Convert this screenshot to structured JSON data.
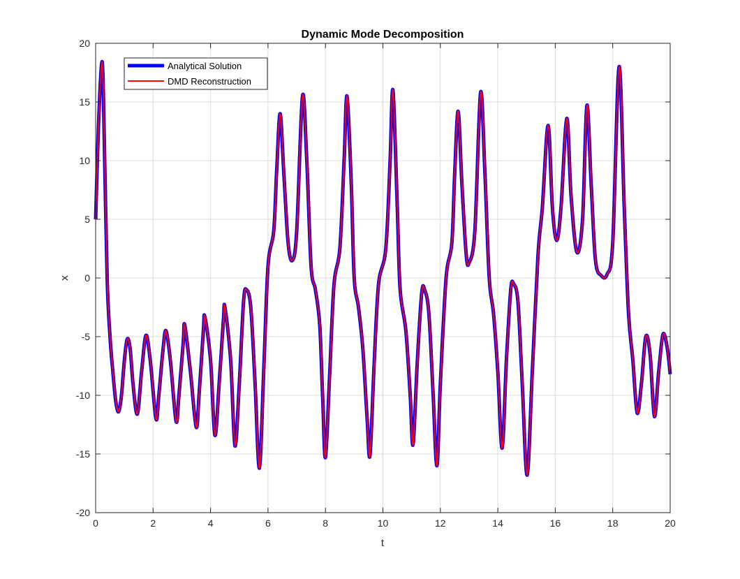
{
  "chart_data": {
    "type": "line",
    "title": "Dynamic Mode Decomposition",
    "xlabel": "t",
    "ylabel": "x",
    "xlim": [
      0,
      20
    ],
    "ylim": [
      -20,
      20
    ],
    "xticks": [
      0,
      2,
      4,
      6,
      8,
      10,
      12,
      14,
      16,
      18,
      20
    ],
    "yticks": [
      -20,
      -15,
      -10,
      -5,
      0,
      5,
      10,
      15,
      20
    ],
    "grid": true,
    "legend_position": "top-left",
    "series": [
      {
        "name": "Analytical Solution",
        "color": "#0000ff",
        "points": [
          [
            0,
            5
          ],
          [
            0.1,
            13
          ],
          [
            0.2,
            18
          ],
          [
            0.25,
            17.5
          ],
          [
            0.3,
            12
          ],
          [
            0.4,
            0
          ],
          [
            0.5,
            -5
          ],
          [
            0.6,
            -8
          ],
          [
            0.7,
            -10.5
          ],
          [
            0.8,
            -11.4
          ],
          [
            0.9,
            -10
          ],
          [
            1.0,
            -7
          ],
          [
            1.1,
            -5.2
          ],
          [
            1.2,
            -6
          ],
          [
            1.3,
            -9
          ],
          [
            1.45,
            -11.6
          ],
          [
            1.6,
            -8
          ],
          [
            1.75,
            -4.9
          ],
          [
            1.9,
            -7
          ],
          [
            2.1,
            -12
          ],
          [
            2.2,
            -10
          ],
          [
            2.35,
            -6
          ],
          [
            2.45,
            -4.5
          ],
          [
            2.6,
            -7
          ],
          [
            2.8,
            -12.2
          ],
          [
            2.9,
            -10
          ],
          [
            3.05,
            -5.5
          ],
          [
            3.1,
            -4
          ],
          [
            3.3,
            -8
          ],
          [
            3.5,
            -12.7
          ],
          [
            3.6,
            -10
          ],
          [
            3.75,
            -4.5
          ],
          [
            3.8,
            -3.3
          ],
          [
            4.0,
            -7
          ],
          [
            4.15,
            -13.4
          ],
          [
            4.3,
            -9
          ],
          [
            4.45,
            -3.5
          ],
          [
            4.5,
            -2.5
          ],
          [
            4.7,
            -7
          ],
          [
            4.85,
            -14.3
          ],
          [
            5.0,
            -9
          ],
          [
            5.15,
            -2
          ],
          [
            5.25,
            -1
          ],
          [
            5.4,
            -2.5
          ],
          [
            5.55,
            -9
          ],
          [
            5.7,
            -16.2
          ],
          [
            5.85,
            -8
          ],
          [
            6.0,
            1
          ],
          [
            6.2,
            4
          ],
          [
            6.3,
            9
          ],
          [
            6.42,
            14
          ],
          [
            6.55,
            9
          ],
          [
            6.7,
            3
          ],
          [
            6.85,
            1.5
          ],
          [
            7.0,
            4
          ],
          [
            7.2,
            15.5
          ],
          [
            7.35,
            10
          ],
          [
            7.5,
            1
          ],
          [
            7.65,
            -1
          ],
          [
            7.8,
            -4
          ],
          [
            7.9,
            -10
          ],
          [
            8.0,
            -15.3
          ],
          [
            8.15,
            -8
          ],
          [
            8.3,
            -0.5
          ],
          [
            8.5,
            2.5
          ],
          [
            8.65,
            10
          ],
          [
            8.75,
            15.5
          ],
          [
            8.9,
            8
          ],
          [
            9.0,
            0
          ],
          [
            9.15,
            -2.5
          ],
          [
            9.3,
            -6
          ],
          [
            9.45,
            -12
          ],
          [
            9.55,
            -15.1
          ],
          [
            9.7,
            -7
          ],
          [
            9.85,
            -0.5
          ],
          [
            10.1,
            2.5
          ],
          [
            10.25,
            10
          ],
          [
            10.35,
            16
          ],
          [
            10.5,
            6
          ],
          [
            10.6,
            -1
          ],
          [
            10.8,
            -4.5
          ],
          [
            10.95,
            -10
          ],
          [
            11.05,
            -14.2
          ],
          [
            11.2,
            -7
          ],
          [
            11.35,
            -1.3
          ],
          [
            11.45,
            -1
          ],
          [
            11.6,
            -3
          ],
          [
            11.75,
            -10
          ],
          [
            11.88,
            -16
          ],
          [
            12.0,
            -9
          ],
          [
            12.2,
            0
          ],
          [
            12.4,
            3
          ],
          [
            12.5,
            9
          ],
          [
            12.62,
            14.2
          ],
          [
            12.75,
            8
          ],
          [
            12.9,
            2
          ],
          [
            13.0,
            1.3
          ],
          [
            13.2,
            4
          ],
          [
            13.4,
            15.8
          ],
          [
            13.55,
            9
          ],
          [
            13.7,
            0
          ],
          [
            13.85,
            -3
          ],
          [
            14.0,
            -8
          ],
          [
            14.15,
            -14.5
          ],
          [
            14.3,
            -7
          ],
          [
            14.45,
            -1
          ],
          [
            14.55,
            -0.5
          ],
          [
            14.7,
            -2
          ],
          [
            14.85,
            -9
          ],
          [
            15.02,
            -16.8
          ],
          [
            15.2,
            -8
          ],
          [
            15.4,
            2
          ],
          [
            15.55,
            6
          ],
          [
            15.75,
            13
          ],
          [
            15.9,
            6
          ],
          [
            16.05,
            3.2
          ],
          [
            16.2,
            6
          ],
          [
            16.4,
            13.6
          ],
          [
            16.55,
            7
          ],
          [
            16.75,
            2.2
          ],
          [
            16.95,
            5
          ],
          [
            17.1,
            14.7
          ],
          [
            17.25,
            8
          ],
          [
            17.4,
            1.5
          ],
          [
            17.6,
            0.2
          ],
          [
            17.8,
            0.3
          ],
          [
            18.0,
            3
          ],
          [
            18.22,
            18
          ],
          [
            18.4,
            6
          ],
          [
            18.55,
            -3
          ],
          [
            18.7,
            -7
          ],
          [
            18.85,
            -11.5
          ],
          [
            19.0,
            -9
          ],
          [
            19.15,
            -5
          ],
          [
            19.3,
            -6.5
          ],
          [
            19.45,
            -11.8
          ],
          [
            19.6,
            -8
          ],
          [
            19.75,
            -4.8
          ],
          [
            19.9,
            -6
          ],
          [
            20.0,
            -8.2
          ]
        ]
      },
      {
        "name": "DMD Reconstruction",
        "color": "#ff0000",
        "same_as": "Analytical Solution"
      }
    ]
  }
}
